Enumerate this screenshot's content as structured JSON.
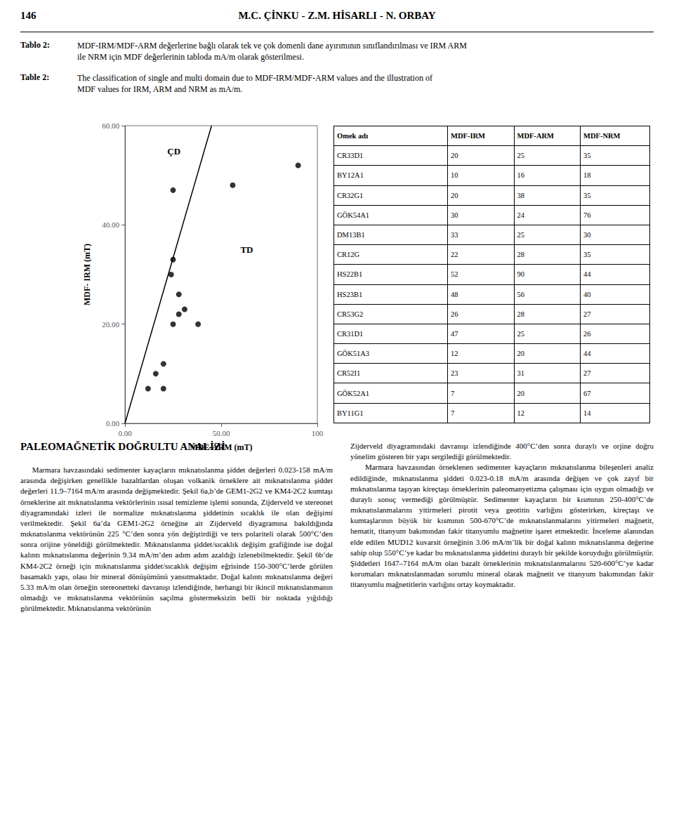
{
  "page": {
    "header_left": "146",
    "header_center": "M.C. ÇİNKU - Z.M. HİSARLI - N. ORBAY",
    "captions": [
      {
        "label": "Tablo 2:",
        "text": "MDF-IRM/MDF-ARM değerlerine bağlı olarak tek ve çok domenli dane ayırımının sınıflandırılması ve IRM ARM\nile NRM için MDF değerlerinin tabloda mA/m olarak gösterilmesi."
      },
      {
        "label": "Table 2:",
        "text": "The classification of single and multi domain due to MDF-IRM/MDF-ARM values and the illustration of\nMDF values for IRM, ARM and NRM as mA/m."
      }
    ],
    "section_title": "PALEOMAĞNETİK DOĞRULTU ANALİZİ",
    "left_col_text": "    Marmara havzasındaki sedimenter kayaçların mıknatıslanma şiddet değerleri 0.023-158 mA/m arasında değişirken genellikle bazaltlardan oluşan volkanik örneklere ait mıknatıslanma şiddet değerleri 11.9–7164 mA/m arasında değişmektedir. Şekil 6a,b’de GEM1-2G2 ve KM4-2C2 kumtaşı örneklerine ait mıknatıslanma vektörlerinin ısısal temizleme işlemi sonunda, Zijderveld ve stereonet diyagramındaki izleri ile normalize mıknatıslanma şiddetinin sıcaklık ile olan değişimi verilmektedir. Şekil 6a’da GEM1-2G2 örneğine ait Zijderveld diyagramına bakıldığında mıknatıslanma vektörünün 225 °C’den sonra yön değiştirdiği ve ters polariteli olarak 500°C’den sonra orijine yöneldiği görülmektedir. Mıknatıslanma şiddet/sıcaklık değişim grafiğinde ise doğal kalıntı mıknatıslanma değerinin 9.34 mA/m’den adım adım azaldığı izlenebilmektedir. Şekil 6b’de KM4-2C2 örneği için mıknatıslanma şiddet/sıcaklık değişim eğrisinde 150-300°C’lerde görülen basamaklı yapı, olası bir mineral dönüşümünü yansıtmaktadır. Doğal kalıntı mıknatıslanma değeri 5.33 mA/m olan örneğin stereonetteki davranışı izlendiğinde, herhangi bir ikincil mıknatıslanmanın olmadığı ve mıknatıslanma vektörünün saçılma göstermeksizin belli bir noktada yığıldığı görülmektedir. Mıknatıslanma vektörünün",
    "right_col_text": "Zijderveld diyagramındaki davranışı izlendiğinde 400°C’den sonra duraylı ve orjine doğru yönelim gösteren bir yapı sergilediği görülmektedir.\n    Marmara havzasından örneklenen sedimenter kayaçların mıknatıslanma bileşenleri analiz edildiğinde, mıknatıslanma şiddeti 0.023-0.18 mA/m arasında değişen ve çok zayıf bir mıknatıslanma taşıyan kireçtaşı örneklerinin paleomanyetizma çalışması için uygun olmadığı ve duraylı sonuç vermediği görülmüştür. Sedimenter kayaçların bir kısmının 250-400°C’de mıknatıslanmalarını yitirmeleri pirotit veya geotitin varlığını gösterirken, kireçtaşı ve kumtaşlarının büyük bir kısmının 500-670°C’de mıknatıslanmalarını yitirmeleri mağnetit, hematit, titanyum bakımından fakir titanyumlu mağnetite işaret etmektedir. İnceleme alanından elde edilen MUD12 kuvarsit örneğinin 3.06 mA/m’lik bir doğal kalıntı mıknatıslanma değerine sahip olup 550°C’ye kadar bu mıknatıslanma şiddetini duraylı bir şekilde koruyduğu görülmüştür. Şiddetleri 1647–7164 mA/m olan bazalt örneklerinin mıknatıslanmalarını 520-600°C’ye kadar korumaları mıknatıslanmadan sorumlu mineral olarak mağnetit ve titanyum bakımından fakir titanyumlu mağnetitlerin varlığını ortay koymaktadır."
  },
  "chart_data": {
    "type": "scatter",
    "xlabel": "MDF-ARM (mT)",
    "ylabel": "MDF- IRM (mT)",
    "series": [
      {
        "type": "scatter",
        "color": "black",
        "marker": "circle",
        "x": [
          25,
          16,
          38,
          24,
          25,
          28,
          90,
          56,
          28,
          25,
          20,
          31,
          20,
          12
        ],
        "values": [
          20,
          10,
          20,
          30,
          33,
          22,
          52,
          48,
          26,
          47,
          12,
          23,
          7,
          7
        ]
      },
      {
        "type": "line",
        "color": "black",
        "line_style": "solid",
        "x": [
          0,
          45
        ],
        "values": [
          0,
          60
        ]
      }
    ],
    "xlim": [
      0,
      100
    ],
    "ylim": [
      0,
      60
    ],
    "xticks": [
      {
        "value": 0,
        "label": "0.00"
      },
      {
        "value": 50,
        "label": "50.00"
      },
      100
    ],
    "yticks": [
      {
        "value": 0,
        "label": "0.00"
      },
      {
        "value": 20,
        "label": "20.00"
      },
      {
        "value": 40,
        "label": "40.00"
      },
      {
        "value": 60,
        "label": "60.00"
      }
    ],
    "grid": false,
    "annotations": [
      {
        "text": "ÇD"
      },
      {
        "text": "TD"
      }
    ]
  },
  "table": {
    "headers": [
      "Omek adı",
      "MDF-IRM",
      "MDF-ARM",
      "MDF-NRM"
    ],
    "rows": [
      [
        "CR33D1",
        "20",
        "25",
        "35"
      ],
      [
        "BY12A1",
        "10",
        "16",
        "18"
      ],
      [
        "CR32G1",
        "20",
        "38",
        "35"
      ],
      [
        "GÖK54A1",
        "30",
        "24",
        "76"
      ],
      [
        "DM13B1",
        "33",
        "25",
        "30"
      ],
      [
        "CR12G",
        "22",
        "28",
        "35"
      ],
      [
        "HS22B1",
        "52",
        "90",
        "44"
      ],
      [
        "HS23B1",
        "48",
        "56",
        "40"
      ],
      [
        "CR53G2",
        "26",
        "28",
        "27"
      ],
      [
        "CR31D1",
        "47",
        "25",
        "26"
      ],
      [
        "GÖK51A3",
        "12",
        "20",
        "44"
      ],
      [
        "CR52I1",
        "23",
        "31",
        "27"
      ],
      [
        "GÖK52A1",
        "7",
        "20",
        "67"
      ],
      [
        "BY11G1",
        "7",
        "12",
        "14"
      ]
    ]
  }
}
